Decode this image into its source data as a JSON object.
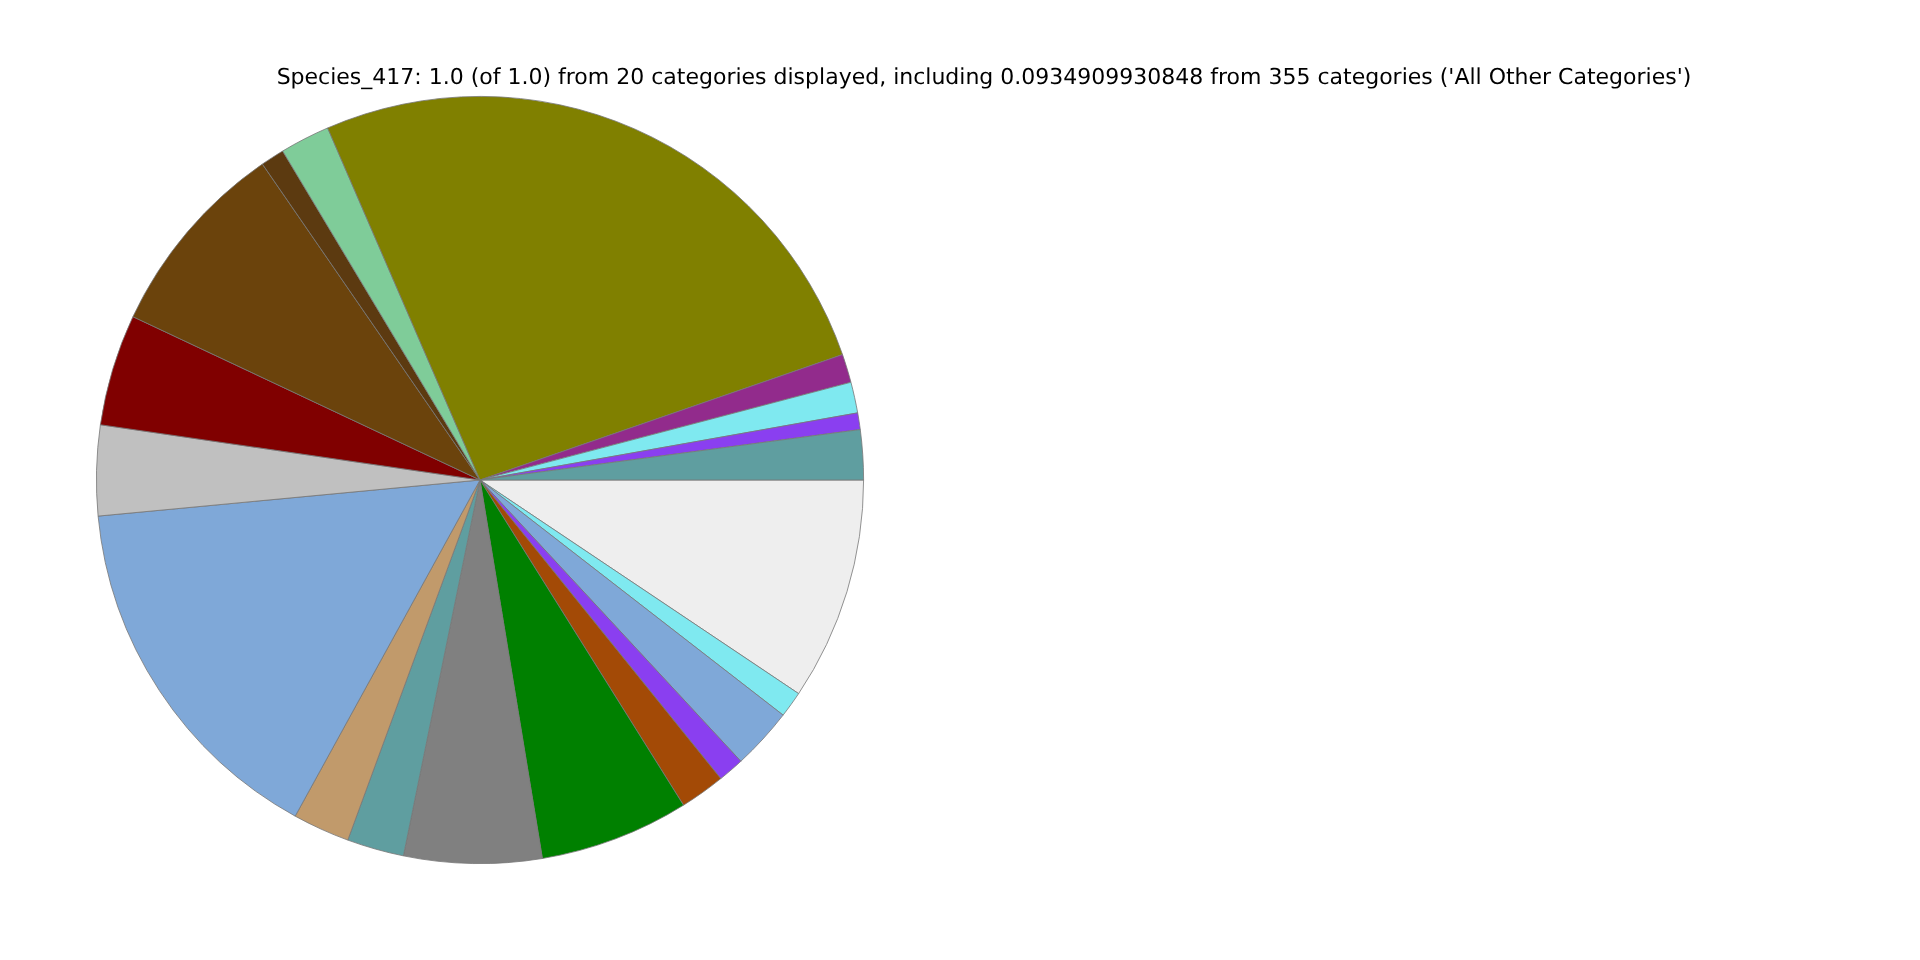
{
  "chart_data": {
    "type": "pie",
    "title": "Species_417: 1.0 (of 1.0) from 20 categories displayed, including 0.0934909930848 from 355 categories ('All Other Categories')",
    "categories": [
      null,
      null,
      null,
      null,
      null,
      null,
      null,
      null,
      null,
      null,
      null,
      null,
      null,
      null,
      null,
      null,
      null,
      null,
      null,
      null
    ],
    "values": [
      2.1,
      0.7,
      1.3,
      1.2,
      26.2,
      2.1,
      1.0,
      8.4,
      4.7,
      3.8,
      15.5,
      2.4,
      2.4,
      5.8,
      6.3,
      1.9,
      1.1,
      2.6,
      1.1,
      9.4
    ],
    "colors": [
      "#5f9ea0",
      "#8a3ff0",
      "#7fe9f0",
      "#922b8c",
      "#808000",
      "#7fcc99",
      "#5c3a10",
      "#6b430c",
      "#800000",
      "#c0c0c0",
      "#7fa8d8",
      "#c19a6b",
      "#5f9ea0",
      "#808080",
      "#008000",
      "#a34a06",
      "#8a3ff0",
      "#7fa8d8",
      "#7fe9f0",
      "#eeeeee"
    ],
    "legend": false
  }
}
